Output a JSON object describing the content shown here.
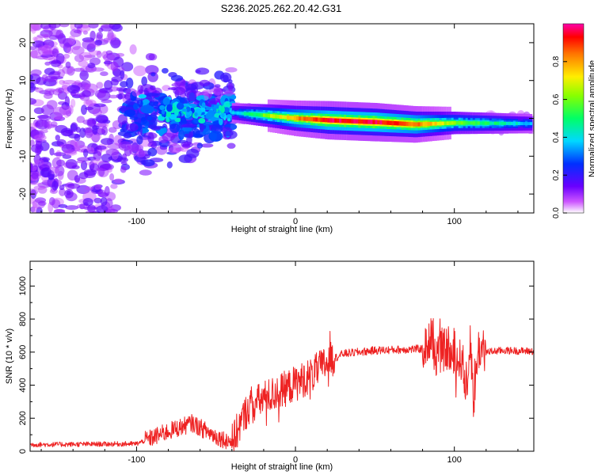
{
  "title": "S236.2025.262.20.42.G31",
  "chart_data": [
    {
      "type": "heatmap",
      "name": "spectrogram",
      "xlabel": "Height of straight line (km)",
      "ylabel": "Frequency (Hz)",
      "xlim": [
        -167,
        150
      ],
      "ylim": [
        -25,
        25
      ],
      "xticks": [
        -100,
        0,
        100
      ],
      "yticks": [
        -20,
        -10,
        0,
        10,
        20
      ],
      "colorbar": {
        "label": "Normalized spectral amplitude",
        "range": [
          0,
          1
        ],
        "ticks": [
          "0.0",
          "0.2",
          "0.4",
          "0.6",
          "0.8"
        ]
      },
      "signal_track": [
        {
          "x": -40,
          "freq": 1.5,
          "amp": 0.35
        },
        {
          "x": -20,
          "freq": 0.8,
          "amp": 0.6
        },
        {
          "x": 0,
          "freq": 0.0,
          "amp": 0.8
        },
        {
          "x": 20,
          "freq": -0.5,
          "amp": 0.95
        },
        {
          "x": 50,
          "freq": -1.0,
          "amp": 0.95
        },
        {
          "x": 75,
          "freq": -1.6,
          "amp": 0.85
        },
        {
          "x": 100,
          "freq": -1.2,
          "amp": 0.6
        },
        {
          "x": 148,
          "freq": -1.4,
          "amp": 0.35
        }
      ]
    },
    {
      "type": "line",
      "name": "snr",
      "xlabel": "Height of straight line (km)",
      "ylabel": "SNR (10 * v/v)",
      "xlim": [
        -167,
        150
      ],
      "ylim": [
        0,
        1150
      ],
      "xticks": [
        -100,
        0,
        100
      ],
      "yticks": [
        0,
        200,
        400,
        600,
        800,
        1000
      ],
      "color": "#ee2222",
      "series": [
        {
          "name": "SNR",
          "x": [
            -167,
            -100,
            -80,
            -65,
            -50,
            -40,
            -30,
            -20,
            -10,
            0,
            10,
            20,
            30,
            50,
            80,
            85,
            88,
            95,
            100,
            105,
            108,
            110,
            112,
            115,
            120,
            130,
            150
          ],
          "y": [
            40,
            45,
            120,
            170,
            90,
            55,
            260,
            320,
            360,
            410,
            460,
            540,
            590,
            610,
            620,
            660,
            580,
            620,
            540,
            560,
            320,
            720,
            290,
            620,
            600,
            610,
            605
          ]
        }
      ]
    }
  ]
}
